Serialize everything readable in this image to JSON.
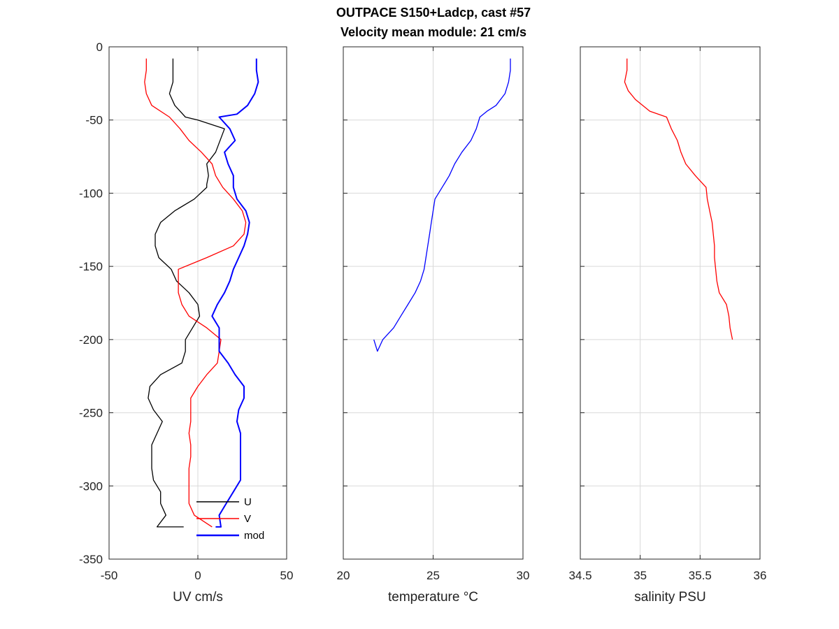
{
  "figure": {
    "title_line1": "OUTPACE S150+Ladcp, cast #57",
    "title_line2": "Velocity mean module:  21 cm/s"
  },
  "colors": {
    "U": "#000000",
    "V": "#ff0000",
    "mod": "#0000ff",
    "temperature": "#0000ff",
    "salinity": "#ff0000",
    "grid": "#d9d9d9",
    "axis": "#262626"
  },
  "chart_data": [
    {
      "type": "line",
      "xlabel": "UV cm/s",
      "ylabel": "",
      "xlim": [
        -50,
        50
      ],
      "ylim": [
        -350,
        0
      ],
      "xticks": [
        -50,
        0,
        50
      ],
      "xtick_labels": [
        "-50",
        "0",
        "50"
      ],
      "yticks": [
        0,
        -50,
        -100,
        -150,
        -200,
        -250,
        -300,
        -350
      ],
      "ytick_labels": [
        "0",
        "-50",
        "-100",
        "-150",
        "-200",
        "-250",
        "-300",
        "-350"
      ],
      "grid": true,
      "legend": {
        "position": "bottom-center",
        "entries": [
          "U",
          "V",
          "mod"
        ]
      },
      "series": [
        {
          "name": "U",
          "color_key": "U",
          "x": [
            -14,
            -14,
            -14,
            -16,
            -13,
            -7,
            0,
            15,
            10,
            5,
            6,
            5,
            5,
            -2,
            -13,
            -21,
            -24,
            -24,
            -22,
            -15,
            -12,
            -5,
            0,
            1,
            -3,
            -7,
            -7,
            -9,
            -21,
            -27,
            -28,
            -25,
            -20,
            -23,
            -26,
            -26,
            -26,
            -25,
            -21,
            -21,
            -18,
            -23,
            -18,
            -8
          ],
          "y": [
            -8,
            -16,
            -24,
            -32,
            -40,
            -48,
            -50,
            -56,
            -72,
            -80,
            -88,
            -94,
            -96,
            -104,
            -112,
            -120,
            -128,
            -136,
            -144,
            -152,
            -160,
            -168,
            -176,
            -184,
            -192,
            -200,
            -208,
            -216,
            -224,
            -232,
            -240,
            -248,
            -256,
            -264,
            -272,
            -280,
            -288,
            -296,
            -304,
            -312,
            -320,
            -328,
            -328,
            -328
          ]
        },
        {
          "name": "V",
          "color_key": "V",
          "x": [
            -29,
            -29,
            -30,
            -29,
            -26,
            -16,
            -10,
            -5,
            2,
            8,
            10,
            14,
            20,
            25,
            27,
            26,
            20,
            5,
            -11,
            -11,
            -11,
            -9,
            -5,
            5,
            13,
            12,
            11,
            5,
            0,
            -4,
            -4,
            -4,
            -5,
            -4,
            -4,
            -5,
            -5,
            -5,
            -5,
            -2,
            8
          ],
          "y": [
            -8,
            -16,
            -24,
            -32,
            -40,
            -48,
            -56,
            -64,
            -72,
            -80,
            -88,
            -96,
            -104,
            -112,
            -120,
            -128,
            -136,
            -144,
            -152,
            -160,
            -168,
            -176,
            -184,
            -192,
            -200,
            -208,
            -216,
            -224,
            -232,
            -240,
            -248,
            -256,
            -264,
            -272,
            -280,
            -288,
            -296,
            -304,
            -312,
            -320,
            -328
          ]
        },
        {
          "name": "mod",
          "color_key": "mod",
          "x": [
            33,
            33,
            34,
            32,
            28,
            22,
            12,
            18,
            21,
            15,
            17,
            20,
            20,
            22,
            27,
            29,
            28,
            26,
            23,
            20,
            18,
            15,
            11,
            8,
            12,
            12,
            12,
            17,
            21,
            26,
            26,
            23,
            22,
            24,
            24,
            24,
            24,
            24,
            20,
            16,
            12,
            13,
            10
          ],
          "y": [
            -8,
            -16,
            -24,
            -32,
            -40,
            -46,
            -48,
            -56,
            -64,
            -72,
            -80,
            -88,
            -96,
            -104,
            -112,
            -120,
            -128,
            -136,
            -144,
            -152,
            -160,
            -168,
            -176,
            -184,
            -192,
            -200,
            -208,
            -216,
            -224,
            -232,
            -240,
            -248,
            -256,
            -264,
            -272,
            -280,
            -288,
            -296,
            -304,
            -312,
            -320,
            -328,
            -328
          ]
        }
      ]
    },
    {
      "type": "line",
      "xlabel": "temperature °C",
      "ylabel": "",
      "xlim": [
        20,
        30
      ],
      "ylim": [
        -350,
        0
      ],
      "xticks": [
        20,
        25,
        30
      ],
      "xtick_labels": [
        "20",
        "25",
        "30"
      ],
      "yticks": [
        0,
        -50,
        -100,
        -150,
        -200,
        -250,
        -300,
        -350
      ],
      "grid": true,
      "series": [
        {
          "name": "",
          "color_key": "temperature",
          "x": [
            29.3,
            29.3,
            29.2,
            29.0,
            28.5,
            28.0,
            27.6,
            27.4,
            27.1,
            26.6,
            26.2,
            25.9,
            25.5,
            25.1,
            25.0,
            24.9,
            24.8,
            24.7,
            24.6,
            24.5,
            24.3,
            24.0,
            23.6,
            23.2,
            22.8,
            22.2,
            21.9,
            21.7
          ],
          "y": [
            -8,
            -16,
            -24,
            -32,
            -40,
            -44,
            -48,
            -56,
            -64,
            -72,
            -80,
            -88,
            -96,
            -104,
            -112,
            -120,
            -128,
            -136,
            -144,
            -152,
            -160,
            -168,
            -176,
            -184,
            -192,
            -200,
            -208,
            -200
          ]
        }
      ]
    },
    {
      "type": "line",
      "xlabel": "salinity PSU",
      "ylabel": "",
      "xlim": [
        34.5,
        36
      ],
      "ylim": [
        -350,
        0
      ],
      "xticks": [
        34.5,
        35,
        35.5,
        36
      ],
      "xtick_labels": [
        "34.5",
        "35",
        "35.5",
        "36"
      ],
      "yticks": [
        0,
        -50,
        -100,
        -150,
        -200,
        -250,
        -300,
        -350
      ],
      "grid": true,
      "series": [
        {
          "name": "",
          "color_key": "salinity",
          "x": [
            34.89,
            34.89,
            34.88,
            34.87,
            34.9,
            34.96,
            35.08,
            35.22,
            35.26,
            35.31,
            35.34,
            35.38,
            35.46,
            35.55,
            35.56,
            35.58,
            35.6,
            35.61,
            35.62,
            35.62,
            35.63,
            35.64,
            35.66,
            35.72,
            35.74,
            35.75,
            35.77
          ],
          "y": [
            -8,
            -16,
            -20,
            -24,
            -30,
            -36,
            -44,
            -48,
            -56,
            -64,
            -72,
            -80,
            -88,
            -96,
            -104,
            -112,
            -120,
            -128,
            -136,
            -144,
            -152,
            -160,
            -168,
            -176,
            -184,
            -192,
            -200
          ]
        }
      ]
    }
  ]
}
